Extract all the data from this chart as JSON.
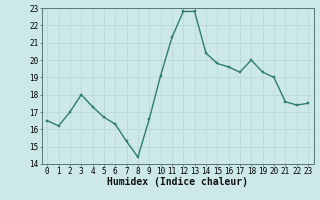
{
  "x": [
    0,
    1,
    2,
    3,
    4,
    5,
    6,
    7,
    8,
    9,
    10,
    11,
    12,
    13,
    14,
    15,
    16,
    17,
    18,
    19,
    20,
    21,
    22,
    23
  ],
  "y": [
    16.5,
    16.2,
    17.0,
    18.0,
    17.3,
    16.7,
    16.3,
    15.3,
    14.4,
    16.6,
    19.1,
    21.3,
    22.8,
    22.8,
    20.4,
    19.8,
    19.6,
    19.3,
    20.0,
    19.3,
    19.0,
    17.6,
    17.4,
    17.5
  ],
  "xlabel": "Humidex (Indice chaleur)",
  "xlim": [
    -0.5,
    23.5
  ],
  "ylim": [
    14,
    23
  ],
  "yticks": [
    14,
    15,
    16,
    17,
    18,
    19,
    20,
    21,
    22,
    23
  ],
  "xticks": [
    0,
    1,
    2,
    3,
    4,
    5,
    6,
    7,
    8,
    9,
    10,
    11,
    12,
    13,
    14,
    15,
    16,
    17,
    18,
    19,
    20,
    21,
    22,
    23
  ],
  "line_color": "#2e7d6e",
  "marker_color": "#2e7d6e",
  "bg_color": "#cde8e8",
  "grid_color": "#b8d4d4",
  "axis_bg": "#cde8e8",
  "xlabel_fontsize": 7,
  "tick_fontsize": 5.5,
  "line_width": 1.0,
  "marker_size": 2.0
}
